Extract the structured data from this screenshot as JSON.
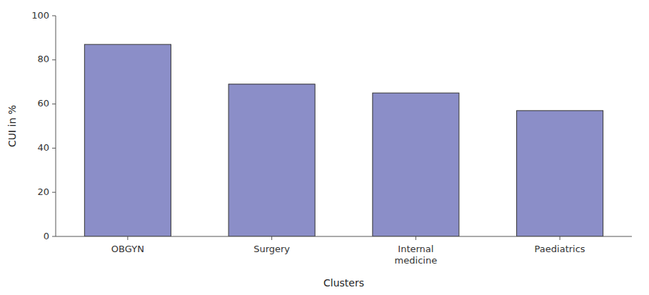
{
  "chart_data": {
    "type": "bar",
    "categories": [
      "OBGYN",
      "Surgery",
      "Internal\nmedicine",
      "Paediatrics"
    ],
    "values": [
      87,
      69,
      65,
      57
    ],
    "color": "#8b8ec8",
    "xlabel": "Clusters",
    "ylabel": "CUI in %",
    "ylim": [
      0,
      100
    ],
    "yticks": [
      0,
      20,
      40,
      60,
      80,
      100
    ],
    "grid": false
  }
}
